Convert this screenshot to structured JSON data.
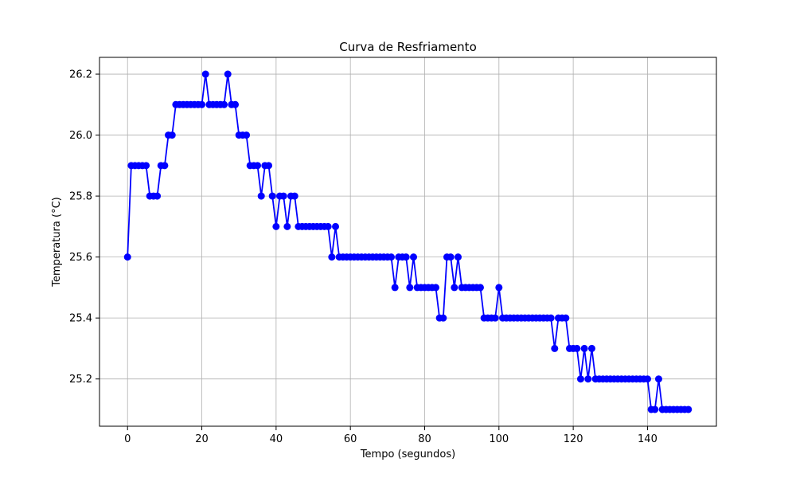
{
  "chart_data": {
    "type": "line",
    "title": "Curva de Resfriamento",
    "xlabel": "Tempo (segundos)",
    "ylabel": "Temperatura (°C)",
    "xlim": [
      -7.55,
      158.55
    ],
    "ylim": [
      25.045,
      26.255
    ],
    "xticks": [
      0,
      20,
      40,
      60,
      80,
      100,
      120,
      140
    ],
    "yticks": [
      25.2,
      25.4,
      25.6,
      25.8,
      26.0,
      26.2
    ],
    "ytick_labels": [
      "25.2",
      "25.4",
      "25.6",
      "25.8",
      "26.0",
      "26.2"
    ],
    "grid": true,
    "series": [
      {
        "color": "#0000ff",
        "marker": "circle",
        "x": [
          0,
          1,
          2,
          3,
          4,
          5,
          6,
          7,
          8,
          9,
          10,
          11,
          12,
          13,
          14,
          15,
          16,
          17,
          18,
          19,
          20,
          21,
          22,
          23,
          24,
          25,
          26,
          27,
          28,
          29,
          30,
          31,
          32,
          33,
          34,
          35,
          36,
          37,
          38,
          39,
          40,
          41,
          42,
          43,
          44,
          45,
          46,
          47,
          48,
          49,
          50,
          51,
          52,
          53,
          54,
          55,
          56,
          57,
          58,
          59,
          60,
          61,
          62,
          63,
          64,
          65,
          66,
          67,
          68,
          69,
          70,
          71,
          72,
          73,
          74,
          75,
          76,
          77,
          78,
          79,
          80,
          81,
          82,
          83,
          84,
          85,
          86,
          87,
          88,
          89,
          90,
          91,
          92,
          93,
          94,
          95,
          96,
          97,
          98,
          99,
          100,
          101,
          102,
          103,
          104,
          105,
          106,
          107,
          108,
          109,
          110,
          111,
          112,
          113,
          114,
          115,
          116,
          117,
          118,
          119,
          120,
          121,
          122,
          123,
          124,
          125,
          126,
          127,
          128,
          129,
          130,
          131,
          132,
          133,
          134,
          135,
          136,
          137,
          138,
          139,
          140,
          141,
          142,
          143,
          144,
          145,
          146,
          147,
          148,
          149,
          150,
          151
        ],
        "y": [
          25.6,
          25.9,
          25.9,
          25.9,
          25.9,
          25.9,
          25.8,
          25.8,
          25.8,
          25.9,
          25.9,
          26.0,
          26.0,
          26.1,
          26.1,
          26.1,
          26.1,
          26.1,
          26.1,
          26.1,
          26.1,
          26.2,
          26.1,
          26.1,
          26.1,
          26.1,
          26.1,
          26.2,
          26.1,
          26.1,
          26.0,
          26.0,
          26.0,
          25.9,
          25.9,
          25.9,
          25.8,
          25.9,
          25.9,
          25.8,
          25.7,
          25.8,
          25.8,
          25.7,
          25.8,
          25.8,
          25.7,
          25.7,
          25.7,
          25.7,
          25.7,
          25.7,
          25.7,
          25.7,
          25.7,
          25.6,
          25.7,
          25.6,
          25.6,
          25.6,
          25.6,
          25.6,
          25.6,
          25.6,
          25.6,
          25.6,
          25.6,
          25.6,
          25.6,
          25.6,
          25.6,
          25.6,
          25.5,
          25.6,
          25.6,
          25.6,
          25.5,
          25.6,
          25.5,
          25.5,
          25.5,
          25.5,
          25.5,
          25.5,
          25.4,
          25.4,
          25.6,
          25.6,
          25.5,
          25.6,
          25.5,
          25.5,
          25.5,
          25.5,
          25.5,
          25.5,
          25.4,
          25.4,
          25.4,
          25.4,
          25.5,
          25.4,
          25.4,
          25.4,
          25.4,
          25.4,
          25.4,
          25.4,
          25.4,
          25.4,
          25.4,
          25.4,
          25.4,
          25.4,
          25.4,
          25.3,
          25.4,
          25.4,
          25.4,
          25.3,
          25.3,
          25.3,
          25.2,
          25.3,
          25.2,
          25.3,
          25.2,
          25.2,
          25.2,
          25.2,
          25.2,
          25.2,
          25.2,
          25.2,
          25.2,
          25.2,
          25.2,
          25.2,
          25.2,
          25.2,
          25.2,
          25.1,
          25.1,
          25.2,
          25.1,
          25.1,
          25.1,
          25.1,
          25.1,
          25.1,
          25.1,
          25.1
        ]
      }
    ]
  }
}
